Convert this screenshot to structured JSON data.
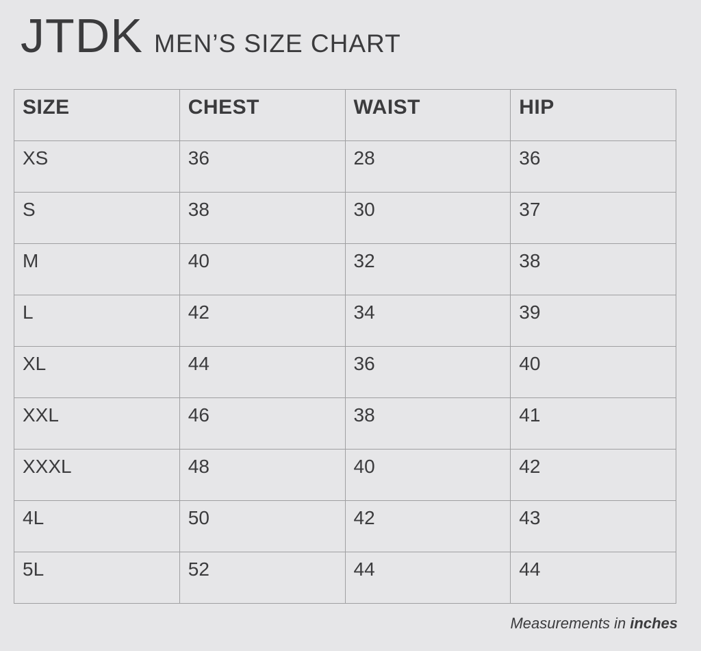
{
  "header": {
    "brand": "JTDK",
    "subtitle": "MEN’S SIZE CHART"
  },
  "chart_data": {
    "type": "table",
    "title": "JTDK MEN’S SIZE CHART",
    "columns": [
      "SIZE",
      "CHEST",
      "WAIST",
      "HIP"
    ],
    "rows": [
      [
        "XS",
        "36",
        "28",
        "36"
      ],
      [
        "S",
        "38",
        "30",
        "37"
      ],
      [
        "M",
        "40",
        "32",
        "38"
      ],
      [
        "L",
        "42",
        "34",
        "39"
      ],
      [
        "XL",
        "44",
        "36",
        "40"
      ],
      [
        "XXL",
        "46",
        "38",
        "41"
      ],
      [
        "XXXL",
        "48",
        "40",
        "42"
      ],
      [
        "4L",
        "50",
        "42",
        "43"
      ],
      [
        "5L",
        "52",
        "44",
        "44"
      ]
    ],
    "unit": "inches"
  },
  "footer": {
    "note_prefix": "Measurements in ",
    "note_unit": "inches"
  },
  "colors": {
    "page_background": "#e6e6e8",
    "table_border": "#9f9fa1",
    "text": "#3b3b3d"
  }
}
